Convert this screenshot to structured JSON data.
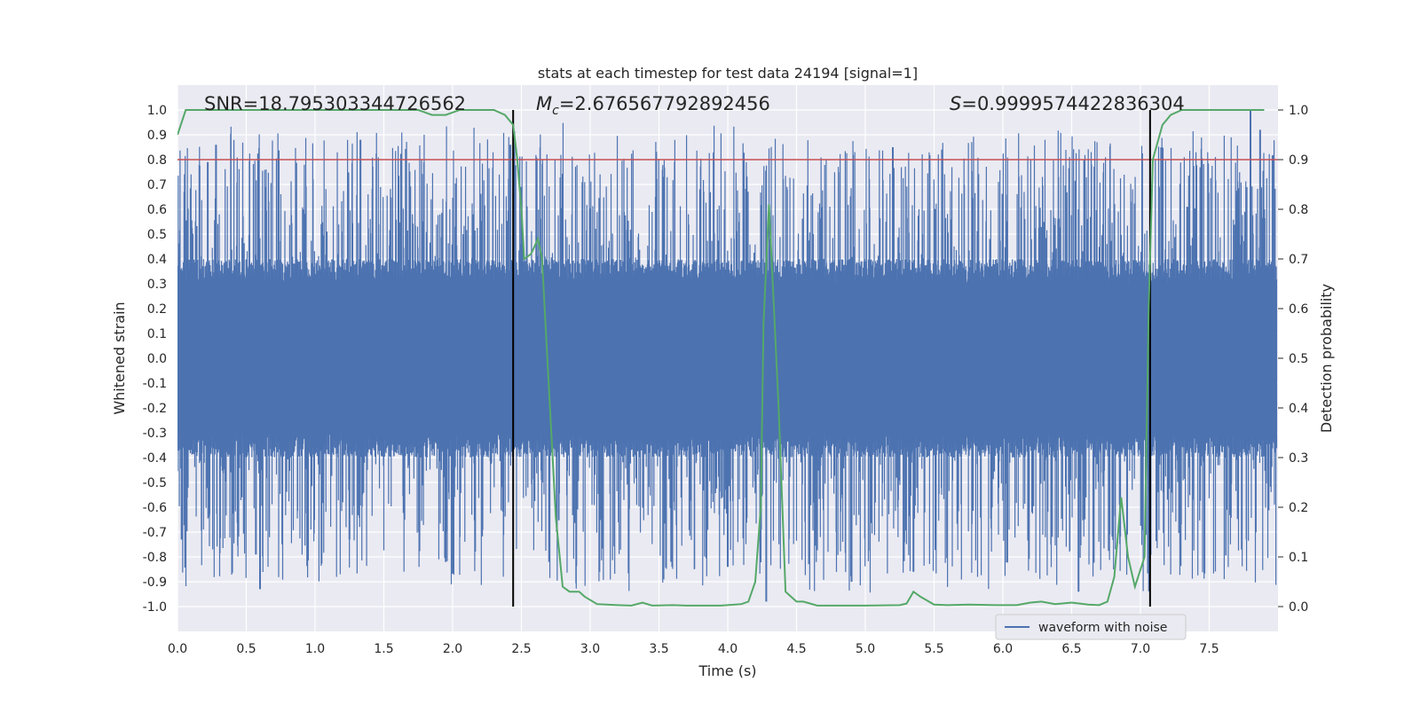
{
  "chart_data": {
    "type": "line",
    "title": "stats at each timestep for test data 24194 [signal=1]",
    "xlabel": "Time (s)",
    "ylabel": "Whitened strain",
    "y2label": "Detection probability",
    "xlim": [
      0.0,
      8.0
    ],
    "ylim": [
      -1.1,
      1.1
    ],
    "y2lim": [
      -0.05,
      1.05
    ],
    "x_ticks": [
      "0.0",
      "0.5",
      "1.0",
      "1.5",
      "2.0",
      "2.5",
      "3.0",
      "3.5",
      "4.0",
      "4.5",
      "5.0",
      "5.5",
      "6.0",
      "6.5",
      "7.0",
      "7.5"
    ],
    "y_ticks": [
      "1.0",
      "0.9",
      "0.8",
      "0.7",
      "0.6",
      "0.5",
      "0.4",
      "0.3",
      "0.2",
      "0.1",
      "0.0",
      "-0.1",
      "-0.2",
      "-0.3",
      "-0.4",
      "-0.5",
      "-0.6",
      "-0.7",
      "-0.8",
      "-0.9",
      "-1.0"
    ],
    "y2_ticks": [
      "1.0",
      "0.9",
      "0.8",
      "0.7",
      "0.6",
      "0.5",
      "0.4",
      "0.3",
      "0.2",
      "0.1",
      "0.0"
    ],
    "grid": true,
    "legend": {
      "position": "bottom-right",
      "entries": [
        "waveform with noise"
      ]
    },
    "annotations": {
      "snr": "SNR=18.795303344726562",
      "mc_symbol": "M",
      "mc_sub": "c",
      "mc_value": "=2.676567792892456",
      "s_symbol": "S",
      "s_value": "=0.9999574422836304"
    },
    "threshold": {
      "value": 0.8,
      "axis": "left",
      "color": "#c44e52"
    },
    "event_markers": [
      2.44,
      7.07
    ],
    "colors": {
      "waveform": "#4c72b0",
      "probability": "#55a868",
      "marker": "#000000",
      "axes_bg": "#eaeaf2",
      "grid": "#ffffff"
    },
    "series": [
      {
        "name": "waveform with noise",
        "axis": "left",
        "style": "dense-noise",
        "x_range": [
          0.0,
          7.99
        ],
        "typical_amplitude": 0.4,
        "peaks": [
          [
            0.03,
            -0.73
          ],
          [
            0.05,
            0.67
          ],
          [
            0.22,
            0.79
          ],
          [
            0.23,
            -0.64
          ],
          [
            0.28,
            0.86
          ],
          [
            0.6,
            -0.93
          ],
          [
            0.57,
            -0.79
          ],
          [
            1.33,
            0.88
          ],
          [
            1.25,
            -0.73
          ],
          [
            1.95,
            -0.82
          ],
          [
            2.42,
            0.86
          ],
          [
            2.5,
            0.69
          ],
          [
            4.0,
            -0.84
          ],
          [
            4.28,
            -0.98
          ],
          [
            4.9,
            -0.9
          ],
          [
            5.2,
            0.85
          ],
          [
            5.35,
            -0.86
          ],
          [
            6.55,
            -0.94
          ],
          [
            7.8,
            1.0
          ],
          [
            7.87,
            0.92
          ]
        ]
      },
      {
        "name": "detection probability",
        "axis": "right",
        "x": [
          0.0,
          0.06,
          0.5,
          1.0,
          1.5,
          1.75,
          1.85,
          1.95,
          2.05,
          2.3,
          2.38,
          2.44,
          2.47,
          2.5,
          2.52,
          2.57,
          2.62,
          2.65,
          2.75,
          2.8,
          2.85,
          2.92,
          2.96,
          3.05,
          3.2,
          3.3,
          3.38,
          3.45,
          3.6,
          3.7,
          3.8,
          3.95,
          4.1,
          4.15,
          4.2,
          4.24,
          4.26,
          4.3,
          4.37,
          4.42,
          4.5,
          4.55,
          4.65,
          4.75,
          5.0,
          5.25,
          5.3,
          5.35,
          5.4,
          5.5,
          5.6,
          5.75,
          5.95,
          6.1,
          6.2,
          6.28,
          6.38,
          6.5,
          6.62,
          6.7,
          6.76,
          6.81,
          6.86,
          6.91,
          6.96,
          7.03,
          7.06,
          7.09,
          7.16,
          7.22,
          7.3,
          7.45,
          7.6,
          7.75,
          7.9
        ],
        "values": [
          0.95,
          1.0,
          1.0,
          1.0,
          1.0,
          1.0,
          0.99,
          0.99,
          1.0,
          1.0,
          0.99,
          0.97,
          0.9,
          0.8,
          0.7,
          0.71,
          0.74,
          0.7,
          0.18,
          0.04,
          0.03,
          0.03,
          0.02,
          0.005,
          0.003,
          0.002,
          0.008,
          0.002,
          0.003,
          0.002,
          0.002,
          0.002,
          0.005,
          0.01,
          0.05,
          0.2,
          0.57,
          0.81,
          0.4,
          0.03,
          0.01,
          0.01,
          0.002,
          0.002,
          0.002,
          0.003,
          0.006,
          0.03,
          0.02,
          0.004,
          0.003,
          0.004,
          0.003,
          0.003,
          0.008,
          0.01,
          0.005,
          0.008,
          0.004,
          0.003,
          0.01,
          0.06,
          0.22,
          0.1,
          0.04,
          0.1,
          0.6,
          0.9,
          0.97,
          0.99,
          1.0,
          1.0,
          1.0,
          1.0,
          1.0
        ]
      }
    ]
  }
}
